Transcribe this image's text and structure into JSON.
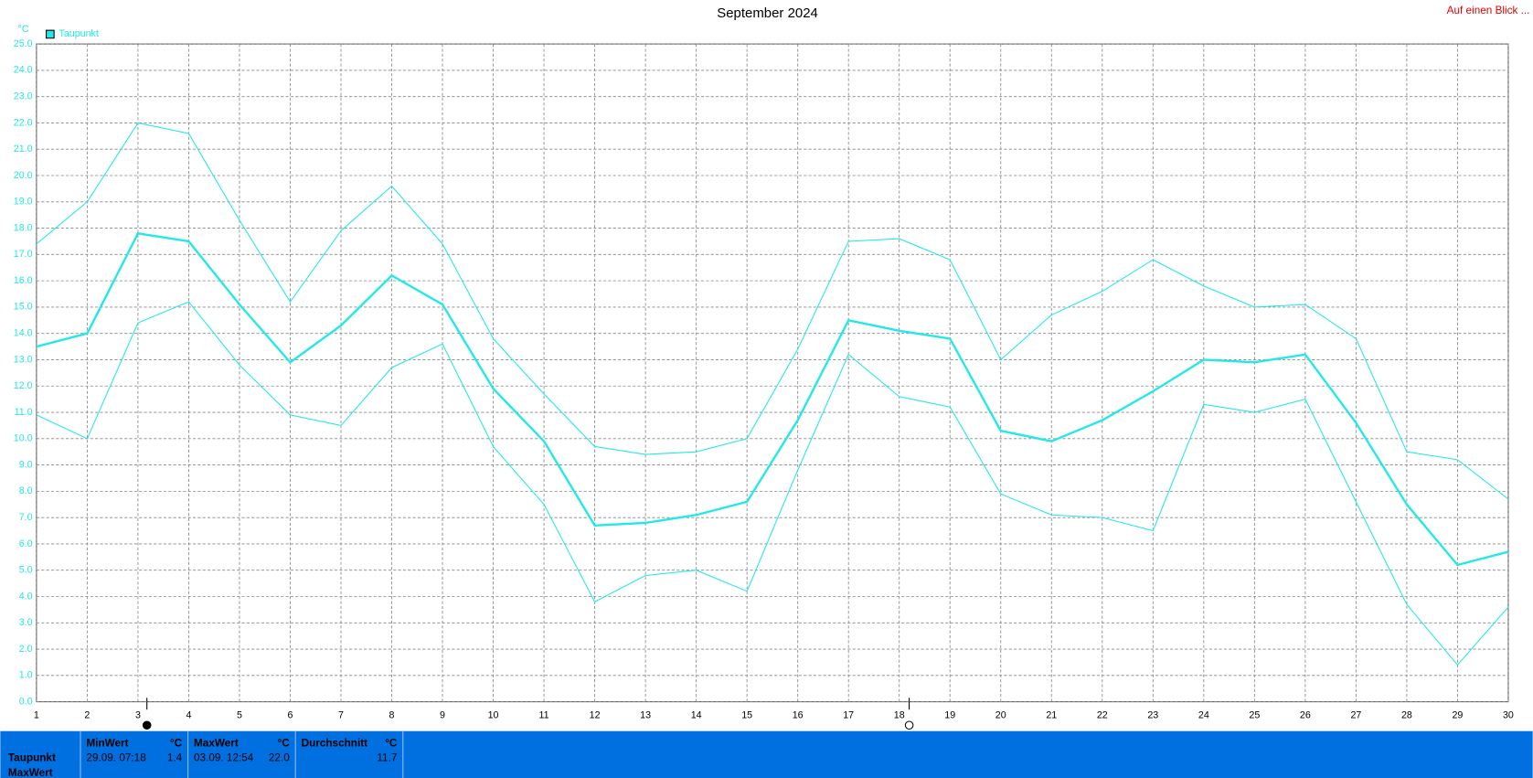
{
  "chart_data": {
    "type": "line",
    "title": "September 2024",
    "unit": "°C",
    "legend": "Taupunkt",
    "link": "Auf einen Blick ...",
    "x": [
      1,
      2,
      3,
      4,
      5,
      6,
      7,
      8,
      9,
      10,
      11,
      12,
      13,
      14,
      15,
      16,
      17,
      18,
      19,
      20,
      21,
      22,
      23,
      24,
      25,
      26,
      27,
      28,
      29,
      30
    ],
    "xlim": [
      1,
      30
    ],
    "xticks": [
      1,
      2,
      3,
      4,
      5,
      6,
      7,
      8,
      9,
      10,
      11,
      12,
      13,
      14,
      15,
      16,
      17,
      18,
      19,
      20,
      21,
      22,
      23,
      24,
      25,
      26,
      27,
      28,
      29,
      30
    ],
    "ylim": [
      0,
      25
    ],
    "yticks": [
      {
        "value": 0,
        "label": "0.0"
      },
      {
        "value": 1,
        "label": "1.0"
      },
      {
        "value": 2,
        "label": "2.0"
      },
      {
        "value": 3,
        "label": "3.0"
      },
      {
        "value": 4,
        "label": "4.0"
      },
      {
        "value": 5,
        "label": "5.0"
      },
      {
        "value": 6,
        "label": "6.0"
      },
      {
        "value": 7,
        "label": "7.0"
      },
      {
        "value": 8,
        "label": "8.0"
      },
      {
        "value": 9,
        "label": "9.0"
      },
      {
        "value": 10,
        "label": "10.0"
      },
      {
        "value": 11,
        "label": "11.0"
      },
      {
        "value": 12,
        "label": "12.0"
      },
      {
        "value": 13,
        "label": "13.0"
      },
      {
        "value": 14,
        "label": "14.0"
      },
      {
        "value": 15,
        "label": "15.0"
      },
      {
        "value": 16,
        "label": "16.0"
      },
      {
        "value": 17,
        "label": "17.0"
      },
      {
        "value": 18,
        "label": "18.0"
      },
      {
        "value": 19,
        "label": "19.0"
      },
      {
        "value": 20,
        "label": "20.0"
      },
      {
        "value": 21,
        "label": "21.0"
      },
      {
        "value": 22,
        "label": "22.0"
      },
      {
        "value": 23,
        "label": "23.0"
      },
      {
        "value": 24,
        "label": "24.0"
      },
      {
        "value": 25,
        "label": "25.0"
      }
    ],
    "grid": true,
    "color": "#22e8e8",
    "series": [
      {
        "color": "#22e8e8",
        "width": 1,
        "values": [
          17.4,
          19.0,
          22.0,
          21.6,
          18.3,
          15.2,
          17.9,
          19.6,
          17.4,
          13.8,
          11.7,
          9.7,
          9.4,
          9.5,
          10.0,
          13.4,
          17.5,
          17.6,
          16.8,
          13.0,
          14.7,
          15.6,
          16.8,
          15.8,
          15.0,
          15.1,
          13.8,
          9.5,
          9.2,
          7.7
        ]
      },
      {
        "color": "#22e8e8",
        "width": 2.2,
        "values": [
          13.5,
          14.0,
          17.8,
          17.5,
          15.1,
          12.9,
          14.3,
          16.2,
          15.1,
          11.9,
          9.9,
          6.7,
          6.8,
          7.1,
          7.6,
          10.7,
          14.5,
          14.1,
          13.8,
          10.3,
          9.9,
          10.7,
          11.8,
          13.0,
          12.9,
          13.2,
          10.6,
          7.5,
          5.2,
          5.7
        ]
      },
      {
        "color": "#22e8e8",
        "width": 1,
        "values": [
          10.9,
          10.0,
          14.4,
          15.2,
          12.8,
          10.9,
          10.5,
          12.7,
          13.6,
          9.7,
          7.5,
          3.8,
          4.8,
          5.0,
          4.2,
          8.8,
          13.2,
          11.6,
          11.2,
          7.9,
          7.1,
          7.0,
          6.5,
          11.3,
          11.0,
          11.5,
          7.6,
          3.7,
          1.4,
          3.6
        ]
      }
    ]
  },
  "footer": {
    "row_labels": [
      "Taupunkt",
      "MaxWert"
    ],
    "columns": [
      {
        "header": "MinWert",
        "unit": "°C",
        "time": "29.09. 07:18",
        "value": "1.4"
      },
      {
        "header": "MaxWert",
        "unit": "°C",
        "time": "03.09. 12:54",
        "value": "22.0"
      },
      {
        "header": "Durchschnitt",
        "unit": "°C",
        "value": "11.7"
      }
    ]
  }
}
